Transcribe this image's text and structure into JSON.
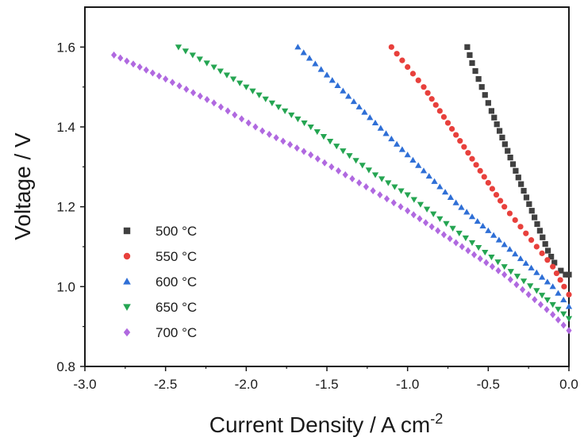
{
  "chart_data": {
    "type": "scatter",
    "xlabel": "Current Density / A cm",
    "xlabel_superscript": "-2",
    "ylabel": "Voltage / V",
    "xlim": [
      -3.0,
      0.0
    ],
    "ylim": [
      0.8,
      1.7
    ],
    "x_ticks": [
      -3.0,
      -2.5,
      -2.0,
      -1.5,
      -1.0,
      -0.5,
      0.0
    ],
    "x_tick_labels": [
      "-3.0",
      "-2.5",
      "-2.0",
      "-1.5",
      "-1.0",
      "-0.5",
      "0.0"
    ],
    "y_ticks": [
      0.8,
      1.0,
      1.2,
      1.4,
      1.6
    ],
    "y_tick_labels": [
      "0.8",
      "1.0",
      "1.2",
      "1.4",
      "1.6"
    ],
    "grid": false,
    "legend_position": "left-center",
    "series": [
      {
        "name": "500 °C",
        "color": "#404040",
        "marker": "square",
        "x": [
          -0.63,
          -0.6,
          -0.56,
          -0.52,
          -0.48,
          -0.43,
          -0.38,
          -0.33,
          -0.28,
          -0.23,
          -0.18,
          -0.13,
          -0.09,
          -0.05,
          -0.02,
          0.0
        ],
        "y": [
          1.6,
          1.56,
          1.52,
          1.48,
          1.44,
          1.39,
          1.34,
          1.29,
          1.24,
          1.19,
          1.14,
          1.09,
          1.06,
          1.04,
          1.03,
          1.03
        ]
      },
      {
        "name": "550 °C",
        "color": "#e8403c",
        "marker": "circle",
        "x": [
          -1.1,
          -1.0,
          -0.9,
          -0.8,
          -0.7,
          -0.6,
          -0.5,
          -0.4,
          -0.3,
          -0.2,
          -0.1,
          -0.03,
          0.0
        ],
        "y": [
          1.6,
          1.55,
          1.5,
          1.44,
          1.38,
          1.32,
          1.26,
          1.2,
          1.15,
          1.1,
          1.05,
          1.0,
          0.98
        ]
      },
      {
        "name": "600 °C",
        "color": "#2f6fd6",
        "marker": "triangle-up",
        "x": [
          -1.68,
          -1.5,
          -1.3,
          -1.1,
          -0.9,
          -0.7,
          -0.5,
          -0.3,
          -0.1,
          0.0
        ],
        "y": [
          1.6,
          1.53,
          1.45,
          1.37,
          1.29,
          1.21,
          1.14,
          1.07,
          1.0,
          0.95
        ]
      },
      {
        "name": "650 °C",
        "color": "#25a552",
        "marker": "triangle-down",
        "x": [
          -2.42,
          -2.2,
          -2.0,
          -1.8,
          -1.6,
          -1.4,
          -1.2,
          -1.0,
          -0.8,
          -0.6,
          -0.4,
          -0.2,
          0.0
        ],
        "y": [
          1.6,
          1.55,
          1.5,
          1.45,
          1.4,
          1.34,
          1.28,
          1.23,
          1.17,
          1.11,
          1.05,
          0.99,
          0.92
        ]
      },
      {
        "name": "700 °C",
        "color": "#b069e0",
        "marker": "diamond",
        "x": [
          -2.82,
          -2.5,
          -2.2,
          -1.9,
          -1.6,
          -1.3,
          -1.0,
          -0.7,
          -0.4,
          -0.1,
          0.0
        ],
        "y": [
          1.58,
          1.52,
          1.46,
          1.39,
          1.33,
          1.26,
          1.19,
          1.11,
          1.03,
          0.93,
          0.89
        ]
      }
    ]
  }
}
